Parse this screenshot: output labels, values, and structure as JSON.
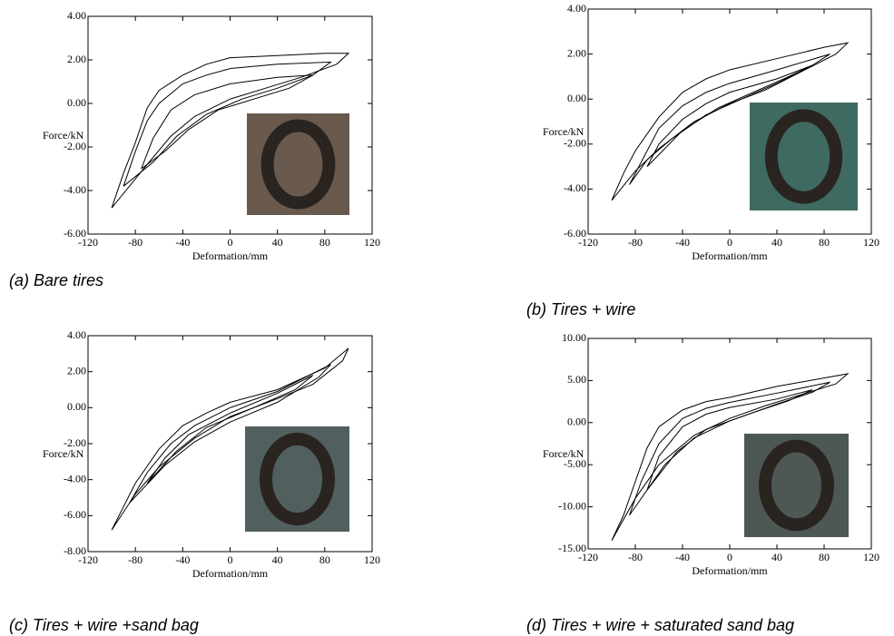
{
  "chart_data": [
    {
      "type": "line",
      "title": "(a) Bare tires",
      "xlabel": "Deformation/mm",
      "ylabel": "Force/kN",
      "color": "#000000",
      "xlim": [
        -120,
        120
      ],
      "xticks": [
        -120,
        -80,
        -40,
        0,
        40,
        80,
        120
      ],
      "ylim": [
        -6,
        4
      ],
      "yticks": [
        {
          "value": 4,
          "label": "4.00"
        },
        {
          "value": 2,
          "label": "2.00"
        },
        {
          "value": 0,
          "label": "0.00"
        },
        {
          "value": -2,
          "label": "-2.00"
        },
        {
          "value": -4,
          "label": "-4.00"
        },
        {
          "value": -6,
          "label": "-6.00"
        }
      ],
      "x": [
        -100,
        -90,
        -80,
        -70,
        -60,
        -40,
        -20,
        0,
        40,
        80,
        100,
        90,
        60,
        30,
        0,
        -30,
        -50,
        -70,
        -85,
        -100,
        null,
        -90,
        -80,
        -70,
        -60,
        -40,
        -20,
        0,
        40,
        85,
        70,
        40,
        10,
        -20,
        -45,
        -65,
        -90,
        null,
        -75,
        -65,
        -50,
        -30,
        0,
        40,
        70,
        50,
        20,
        -10,
        -35,
        -55,
        -75
      ],
      "values": [
        -4.8,
        -3.2,
        -1.8,
        -0.2,
        0.6,
        1.3,
        1.8,
        2.1,
        2.2,
        2.3,
        2.3,
        1.8,
        1.2,
        0.7,
        0.2,
        -0.6,
        -1.5,
        -2.8,
        -3.8,
        -4.8,
        null,
        -3.8,
        -2.2,
        -0.8,
        0,
        0.9,
        1.3,
        1.6,
        1.8,
        1.9,
        1.3,
        0.7,
        0.2,
        -0.5,
        -1.5,
        -2.7,
        -3.8,
        null,
        -3,
        -1.6,
        -0.3,
        0.4,
        0.9,
        1.2,
        1.3,
        0.7,
        0.2,
        -0.3,
        -1.2,
        -2.2,
        -3
      ]
    },
    {
      "type": "line",
      "title": "(b) Tires + wire",
      "xlabel": "Deformation/mm",
      "ylabel": "Force/kN",
      "color": "#000000",
      "xlim": [
        -120,
        120
      ],
      "xticks": [
        -120,
        -80,
        -40,
        0,
        40,
        80,
        120
      ],
      "ylim": [
        -6,
        4
      ],
      "yticks": [
        {
          "value": 4,
          "label": "4.00"
        },
        {
          "value": 2,
          "label": "2.00"
        },
        {
          "value": 0,
          "label": "0.00"
        },
        {
          "value": -2,
          "label": "-2.00"
        },
        {
          "value": -4,
          "label": "-4.00"
        },
        {
          "value": -6,
          "label": "-6.00"
        }
      ],
      "x": [
        -100,
        -90,
        -80,
        -60,
        -40,
        -20,
        0,
        40,
        80,
        100,
        90,
        60,
        30,
        0,
        -30,
        -60,
        -80,
        -100,
        null,
        -85,
        -75,
        -60,
        -40,
        -20,
        0,
        40,
        85,
        70,
        40,
        10,
        -20,
        -50,
        -70,
        -85,
        null,
        -70,
        -60,
        -40,
        -20,
        0,
        40,
        70,
        50,
        20,
        -10,
        -40,
        -70
      ],
      "values": [
        -4.5,
        -3.3,
        -2.3,
        -0.8,
        0.3,
        0.9,
        1.3,
        1.8,
        2.3,
        2.5,
        2.0,
        1.2,
        0.4,
        -0.2,
        -1.0,
        -2.2,
        -3.2,
        -4.5,
        null,
        -3.8,
        -2.8,
        -1.3,
        -0.3,
        0.3,
        0.7,
        1.3,
        2.0,
        1.5,
        0.7,
        0.0,
        -0.7,
        -1.8,
        -2.7,
        -3.8,
        null,
        -3,
        -2,
        -0.9,
        -0.2,
        0.3,
        0.9,
        1.5,
        1.0,
        0.3,
        -0.4,
        -1.4,
        -3
      ]
    },
    {
      "type": "line",
      "title": "(c) Tires + wire +sand bag",
      "xlabel": "Deformation/mm",
      "ylabel": "Force/kN",
      "color": "#000000",
      "xlim": [
        -120,
        120
      ],
      "xticks": [
        -120,
        -80,
        -40,
        0,
        40,
        80,
        120
      ],
      "ylim": [
        -8,
        4
      ],
      "yticks": [
        {
          "value": 4,
          "label": "4.00"
        },
        {
          "value": 2,
          "label": "2.00"
        },
        {
          "value": 0,
          "label": "0.00"
        },
        {
          "value": -2,
          "label": "-2.00"
        },
        {
          "value": -4,
          "label": "-4.00"
        },
        {
          "value": -6,
          "label": "-6.00"
        },
        {
          "value": -8,
          "label": "-8.00"
        }
      ],
      "x": [
        -100,
        -90,
        -80,
        -60,
        -40,
        -20,
        0,
        40,
        80,
        100,
        95,
        70,
        40,
        0,
        -30,
        -60,
        -80,
        -100,
        null,
        -85,
        -70,
        -50,
        -30,
        0,
        40,
        85,
        75,
        40,
        0,
        -30,
        -55,
        -85,
        null,
        -70,
        -55,
        -35,
        0,
        40,
        70,
        55,
        20,
        -20,
        -45,
        -70
      ],
      "values": [
        -6.8,
        -5.5,
        -4.2,
        -2.3,
        -1.0,
        -0.3,
        0.3,
        1.0,
        2.2,
        3.3,
        2.6,
        1.3,
        0.5,
        -0.5,
        -1.7,
        -3.3,
        -4.8,
        -6.8,
        null,
        -5.3,
        -3.6,
        -2.0,
        -1.0,
        0.0,
        0.9,
        2.4,
        1.7,
        0.3,
        -0.8,
        -1.9,
        -3.2,
        -5.3,
        null,
        -4.2,
        -2.8,
        -1.5,
        -0.3,
        0.8,
        1.8,
        1.0,
        0.0,
        -1.1,
        -2.4,
        -4.2
      ]
    },
    {
      "type": "line",
      "title": "(d) Tires + wire + saturated sand bag",
      "xlabel": "Deformation/mm",
      "ylabel": "Force/kN",
      "color": "#000000",
      "xlim": [
        -120,
        120
      ],
      "xticks": [
        -120,
        -80,
        -40,
        0,
        40,
        80,
        120
      ],
      "ylim": [
        -15,
        10
      ],
      "yticks": [
        {
          "value": 10,
          "label": "10.00"
        },
        {
          "value": 5,
          "label": "5.00"
        },
        {
          "value": 0,
          "label": "0.00"
        },
        {
          "value": -5,
          "label": "-5.00"
        },
        {
          "value": -10,
          "label": "-10.00"
        },
        {
          "value": -15,
          "label": "-15.00"
        }
      ],
      "x": [
        -100,
        -90,
        -80,
        -70,
        -60,
        -40,
        -20,
        0,
        40,
        80,
        100,
        90,
        60,
        30,
        0,
        -30,
        -60,
        -80,
        -100,
        null,
        -85,
        -75,
        -60,
        -40,
        -20,
        0,
        40,
        85,
        70,
        40,
        0,
        -30,
        -55,
        -85,
        null,
        -70,
        -60,
        -40,
        -20,
        0,
        40,
        70,
        50,
        20,
        -20,
        -45,
        -70
      ],
      "values": [
        -14,
        -11,
        -7,
        -3,
        -0.5,
        1.5,
        2.5,
        3,
        4.3,
        5.3,
        5.8,
        4.6,
        3.3,
        2,
        0.5,
        -1.5,
        -5,
        -9,
        -14,
        null,
        -11,
        -7,
        -2.5,
        0.5,
        1.7,
        2.4,
        3.5,
        4.8,
        3.6,
        2.2,
        0.2,
        -1.8,
        -5,
        -11,
        null,
        -8,
        -4,
        -0.5,
        1,
        1.8,
        2.8,
        3.9,
        2.6,
        1.2,
        -0.8,
        -3.5,
        -8
      ]
    }
  ]
}
